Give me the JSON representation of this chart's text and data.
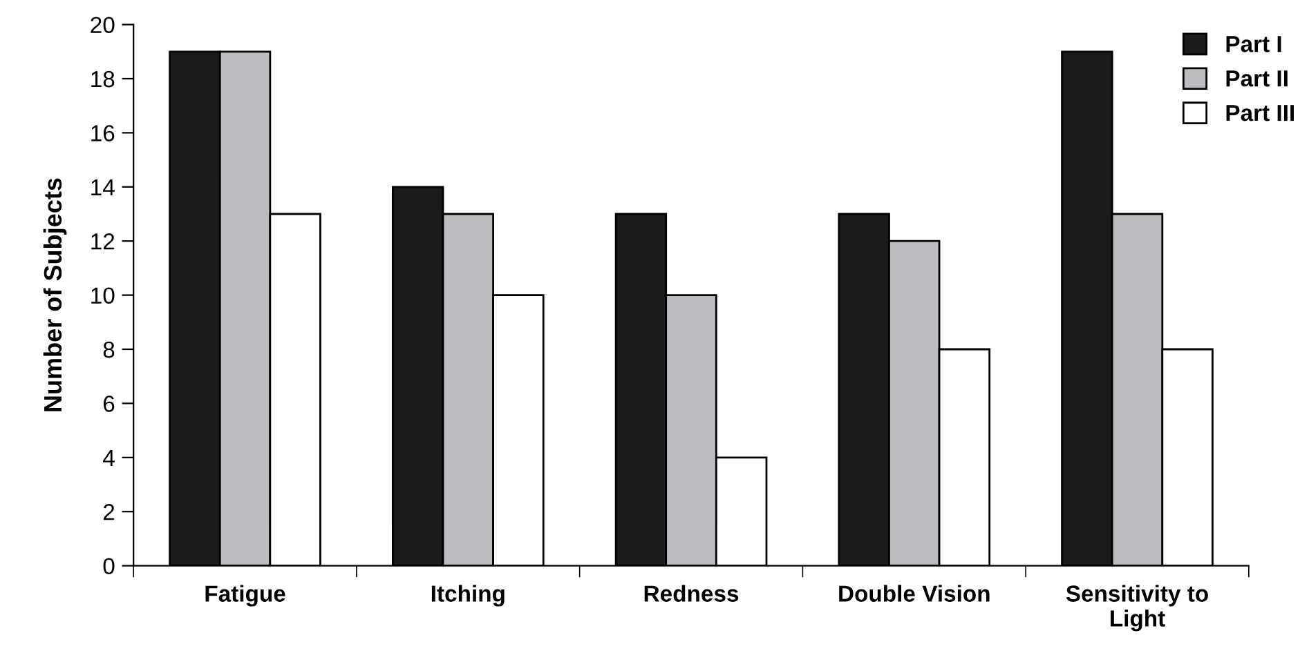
{
  "chart_data": {
    "type": "bar",
    "ylabel": "Number of Subjects",
    "categories": [
      "Fatigue",
      "Itching",
      "Redness",
      "Double Vision",
      "Sensitivity to\nLight"
    ],
    "series": [
      {
        "name": "Part I",
        "color": "#1a1a1a",
        "values": [
          19,
          14,
          13,
          13,
          19
        ]
      },
      {
        "name": "Part II",
        "color": "#bbbcc0",
        "values": [
          19,
          13,
          10,
          12,
          13
        ]
      },
      {
        "name": "Part III",
        "color": "#ffffff",
        "values": [
          13,
          10,
          4,
          8,
          8
        ]
      }
    ],
    "ylim": [
      0,
      20
    ],
    "yticks": [
      0,
      2,
      4,
      6,
      8,
      10,
      12,
      14,
      16,
      18,
      20
    ],
    "grid": false,
    "legend": "top right"
  }
}
